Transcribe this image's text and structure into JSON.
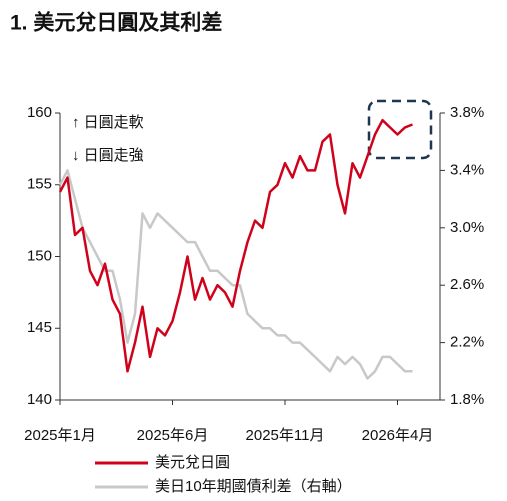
{
  "chart_data": {
    "type": "line",
    "title": "1. 美元兌日圓及其利差",
    "annotations": [
      "↑ 日圓走軟",
      "↓ 日圓走強"
    ],
    "categories": [
      "2025年1月",
      null,
      null,
      null,
      null,
      null,
      null,
      null,
      null,
      null,
      null,
      null,
      null,
      null,
      null,
      "2025年6月",
      null,
      null,
      null,
      null,
      null,
      null,
      null,
      null,
      null,
      null,
      null,
      null,
      null,
      null,
      "2025年11月",
      null,
      null,
      null,
      null,
      null,
      null,
      null,
      null,
      null,
      null,
      null,
      null,
      null,
      null,
      "2026年4月",
      null,
      null
    ],
    "series": [
      {
        "name": "美元兌日圓",
        "color": "#d0021b",
        "axis": "y",
        "values": [
          154.5,
          155.5,
          151.5,
          152,
          149,
          148,
          149.5,
          147,
          146,
          142,
          144,
          146.5,
          143,
          145,
          144.5,
          145.5,
          147.5,
          150,
          147,
          148.5,
          147,
          148,
          147.5,
          146.5,
          149,
          151,
          152.5,
          152,
          154.5,
          155,
          156.5,
          155.5,
          157,
          156,
          156,
          158,
          158.5,
          155,
          153,
          156.5,
          155.5,
          157,
          158.5,
          159.5,
          159,
          158.5,
          159,
          159.2
        ]
      },
      {
        "name": "美日10年期國債利差（右軸）",
        "color": "#c8c8c8",
        "axis": "y2",
        "values": [
          3.3,
          3.4,
          3.2,
          3.0,
          2.9,
          2.8,
          2.7,
          2.7,
          2.5,
          2.2,
          2.4,
          3.1,
          3.0,
          3.1,
          3.05,
          3.0,
          2.95,
          2.9,
          2.9,
          2.8,
          2.7,
          2.7,
          2.65,
          2.6,
          2.6,
          2.4,
          2.35,
          2.3,
          2.3,
          2.25,
          2.25,
          2.2,
          2.2,
          2.15,
          2.1,
          2.05,
          2.0,
          2.1,
          2.05,
          2.1,
          2.05,
          1.95,
          2.0,
          2.1,
          2.1,
          2.05,
          2.0,
          2.0
        ]
      }
    ],
    "ylim": [
      140,
      160
    ],
    "yticks": [
      140,
      145,
      150,
      155,
      160
    ],
    "y2lim": [
      1.8,
      3.8
    ],
    "y2ticks": [
      {
        "value": 1.8,
        "label": "1.8%"
      },
      {
        "value": 2.2,
        "label": "2.2%"
      },
      {
        "value": 2.6,
        "label": "2.6%"
      },
      {
        "value": 3.0,
        "label": "3.0%"
      },
      {
        "value": 3.4,
        "label": "3.4%"
      },
      {
        "value": 3.8,
        "label": "3.8%"
      }
    ],
    "grid": false,
    "legend": "bottom"
  }
}
